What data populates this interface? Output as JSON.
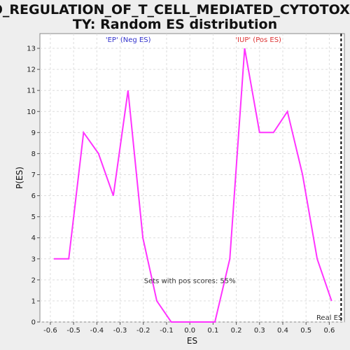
{
  "chart_data": {
    "type": "line",
    "title_line1": "GO_REGULATION_OF_T_CELL_MEDIATED_CYTOTOXICI",
    "title_line2": "TY: Random ES distribution",
    "xlabel": "ES",
    "ylabel": "P(ES)",
    "xlim": [
      -0.645,
      0.665
    ],
    "ylim": [
      0,
      13.7
    ],
    "xticks": [
      -0.6,
      -0.5,
      -0.4,
      -0.3,
      -0.2,
      -0.1,
      0.0,
      0.1,
      0.2,
      0.3,
      0.4,
      0.5,
      0.6
    ],
    "yticks": [
      0,
      1,
      2,
      3,
      4,
      5,
      6,
      7,
      8,
      9,
      10,
      11,
      12,
      13
    ],
    "grid": true,
    "series": [
      {
        "color": "#ff33ff",
        "x": [
          -0.585,
          -0.521,
          -0.457,
          -0.393,
          -0.329,
          -0.266,
          -0.202,
          -0.142,
          -0.08,
          -0.016,
          0.048,
          0.108,
          0.172,
          0.236,
          0.3,
          0.36,
          0.42,
          0.485,
          0.548,
          0.61
        ],
        "y": [
          3,
          3,
          9,
          8,
          6,
          11,
          4,
          1,
          0,
          0,
          0,
          0,
          3,
          13,
          9,
          9,
          10,
          7,
          3,
          1
        ]
      }
    ],
    "annotations": {
      "neg_label": "'EP' (Neg ES)",
      "pos_label": "'IUP' (Pos ES)",
      "pos_scores": "Sets with pos scores: 55%",
      "real_es": "Real ES"
    },
    "real_es_x": 0.651,
    "colors": {
      "neg": "#3333cc",
      "pos": "#dd3333",
      "real_es_line": "#000000"
    }
  }
}
